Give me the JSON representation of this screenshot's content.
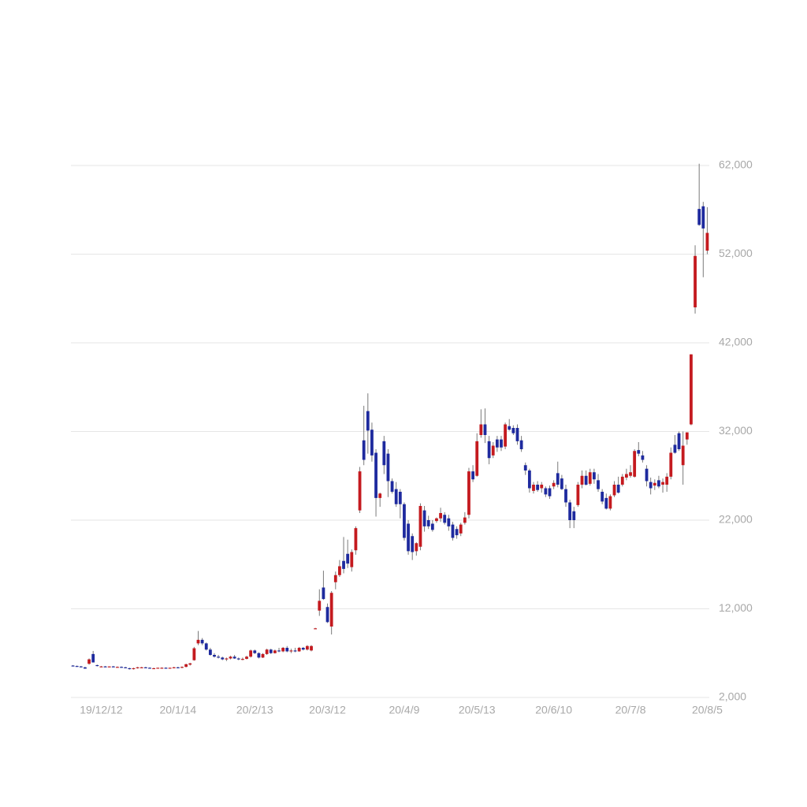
{
  "chart_data": {
    "type": "candlestick",
    "categories": [
      null,
      null,
      null,
      null,
      null,
      null,
      null,
      "19/12/12",
      null,
      null,
      null,
      null,
      null,
      null,
      null,
      null,
      null,
      null,
      null,
      null,
      null,
      null,
      null,
      null,
      null,
      null,
      "20/1/14",
      null,
      null,
      null,
      null,
      null,
      null,
      null,
      null,
      null,
      null,
      null,
      null,
      null,
      null,
      null,
      null,
      null,
      null,
      "20/2/13",
      null,
      null,
      null,
      null,
      null,
      null,
      null,
      null,
      null,
      null,
      null,
      null,
      null,
      null,
      null,
      null,
      null,
      "20/3/12",
      null,
      null,
      null,
      null,
      null,
      null,
      null,
      null,
      null,
      null,
      null,
      null,
      null,
      null,
      null,
      null,
      null,
      null,
      "20/4/9",
      null,
      null,
      null,
      null,
      null,
      null,
      null,
      null,
      null,
      null,
      null,
      null,
      null,
      null,
      null,
      null,
      null,
      "20/5/13",
      null,
      null,
      null,
      null,
      null,
      null,
      null,
      null,
      null,
      null,
      null,
      null,
      null,
      null,
      null,
      null,
      null,
      null,
      "20/6/10",
      null,
      null,
      null,
      null,
      null,
      null,
      null,
      null,
      null,
      null,
      null,
      null,
      null,
      null,
      null,
      null,
      null,
      null,
      "20/7/8",
      null,
      null,
      null,
      null,
      null,
      null,
      null,
      null,
      null,
      null,
      null,
      null,
      null,
      null,
      null,
      null,
      null,
      null,
      "20/8/5"
    ],
    "candles": [
      [
        5600,
        5650,
        5550,
        5550
      ],
      [
        5550,
        5600,
        5500,
        5500
      ],
      [
        5500,
        5550,
        5450,
        5450
      ],
      [
        5400,
        5450,
        5250,
        5250
      ],
      [
        5800,
        6400,
        5700,
        6300
      ],
      [
        6900,
        7250,
        5950,
        5950
      ],
      [
        5650,
        5700,
        5500,
        5550
      ],
      [
        5500,
        5550,
        5450,
        5500
      ],
      [
        5500,
        5550,
        5450,
        5450
      ],
      [
        5450,
        5500,
        5400,
        5500
      ],
      [
        5500,
        5550,
        5450,
        5450
      ],
      [
        5450,
        5500,
        5400,
        5450
      ],
      [
        5450,
        5500,
        5350,
        5400
      ],
      [
        5400,
        5450,
        5300,
        5300
      ],
      [
        5300,
        5350,
        5150,
        5200
      ],
      [
        5200,
        5350,
        5150,
        5300
      ],
      [
        5300,
        5450,
        5250,
        5400
      ],
      [
        5400,
        5450,
        5350,
        5400
      ],
      [
        5400,
        5450,
        5350,
        5350
      ],
      [
        5350,
        5400,
        5250,
        5300
      ],
      [
        5300,
        5350,
        5200,
        5300
      ],
      [
        5300,
        5350,
        5250,
        5350
      ],
      [
        5350,
        5400,
        5300,
        5350
      ],
      [
        5350,
        5400,
        5300,
        5300
      ],
      [
        5300,
        5350,
        5250,
        5350
      ],
      [
        5350,
        5450,
        5300,
        5400
      ],
      [
        5400,
        5450,
        5300,
        5350
      ],
      [
        5350,
        5500,
        5300,
        5450
      ],
      [
        5450,
        5800,
        5400,
        5750
      ],
      [
        5700,
        5900,
        5600,
        5850
      ],
      [
        6200,
        7700,
        6150,
        7550
      ],
      [
        8100,
        9500,
        7900,
        8500
      ],
      [
        8500,
        8700,
        7900,
        8100
      ],
      [
        8100,
        8200,
        7300,
        7400
      ],
      [
        7400,
        7600,
        6700,
        6800
      ],
      [
        6800,
        7000,
        6500,
        6600
      ],
      [
        6600,
        6800,
        6400,
        6500
      ],
      [
        6500,
        6600,
        6200,
        6300
      ],
      [
        6300,
        6500,
        6100,
        6400
      ],
      [
        6400,
        6700,
        6300,
        6600
      ],
      [
        6600,
        6800,
        6350,
        6400
      ],
      [
        6400,
        6500,
        6200,
        6300
      ],
      [
        6300,
        6500,
        6200,
        6350
      ],
      [
        6350,
        6700,
        6300,
        6600
      ],
      [
        6600,
        7400,
        6500,
        7300
      ],
      [
        7300,
        7400,
        6900,
        7000
      ],
      [
        7000,
        7100,
        6400,
        6500
      ],
      [
        6500,
        7000,
        6450,
        6900
      ],
      [
        6900,
        7500,
        6800,
        7400
      ],
      [
        7400,
        7500,
        6900,
        7000
      ],
      [
        7000,
        7400,
        6950,
        7300
      ],
      [
        7300,
        7600,
        7100,
        7200
      ],
      [
        7200,
        7700,
        7100,
        7600
      ],
      [
        7600,
        7800,
        7100,
        7200
      ],
      [
        7200,
        7500,
        7000,
        7300
      ],
      [
        7300,
        7600,
        7100,
        7200
      ],
      [
        7200,
        7700,
        7150,
        7600
      ],
      [
        7600,
        7700,
        7300,
        7400
      ],
      [
        7400,
        7900,
        7300,
        7800
      ],
      [
        7300,
        7900,
        7200,
        7800
      ],
      [
        9800,
        9850,
        9750,
        9800
      ],
      [
        11800,
        14200,
        11200,
        12900
      ],
      [
        14400,
        16300,
        13000,
        13100
      ],
      [
        12200,
        12600,
        10400,
        10500
      ],
      [
        10000,
        14000,
        9100,
        13800
      ],
      [
        15000,
        16200,
        14200,
        15800
      ],
      [
        15800,
        17500,
        15600,
        16800
      ],
      [
        17400,
        20100,
        16000,
        16500
      ],
      [
        18200,
        19800,
        16600,
        17100
      ],
      [
        16700,
        18700,
        16200,
        18400
      ],
      [
        18600,
        21300,
        18100,
        21100
      ],
      [
        23100,
        28000,
        22800,
        27500
      ],
      [
        31000,
        34900,
        28200,
        28800
      ],
      [
        34300,
        36300,
        29500,
        32100
      ],
      [
        32200,
        33000,
        28600,
        29300
      ],
      [
        29600,
        30000,
        22400,
        24500
      ],
      [
        24500,
        25100,
        23500,
        25000
      ],
      [
        30900,
        31500,
        27200,
        28200
      ],
      [
        29500,
        30000,
        24600,
        26400
      ],
      [
        26400,
        26700,
        25000,
        25200
      ],
      [
        25500,
        26300,
        23500,
        23800
      ],
      [
        25200,
        25500,
        22200,
        23800
      ],
      [
        23800,
        24000,
        19700,
        20000
      ],
      [
        21600,
        22000,
        18100,
        18500
      ],
      [
        20200,
        20500,
        17500,
        18400
      ],
      [
        18500,
        19500,
        18000,
        19400
      ],
      [
        19000,
        23900,
        18600,
        23600
      ],
      [
        23100,
        23600,
        20700,
        21300
      ],
      [
        22000,
        22500,
        21000,
        21300
      ],
      [
        21600,
        22000,
        20700,
        20900
      ],
      [
        21900,
        22300,
        21700,
        22200
      ],
      [
        22200,
        23400,
        21800,
        22800
      ],
      [
        22600,
        22900,
        21500,
        21700
      ],
      [
        22200,
        22600,
        20800,
        21300
      ],
      [
        21500,
        21800,
        19700,
        20000
      ],
      [
        21000,
        21300,
        19900,
        20300
      ],
      [
        20500,
        21700,
        20200,
        21500
      ],
      [
        21700,
        22900,
        21500,
        22300
      ],
      [
        22600,
        27900,
        22200,
        27500
      ],
      [
        27500,
        28200,
        26300,
        26600
      ],
      [
        27000,
        31800,
        26900,
        30900
      ],
      [
        31600,
        34500,
        31300,
        32800
      ],
      [
        32800,
        34600,
        30700,
        31600
      ],
      [
        30900,
        31500,
        28300,
        29000
      ],
      [
        29300,
        30800,
        29000,
        30400
      ],
      [
        31100,
        31500,
        29700,
        30200
      ],
      [
        31100,
        31500,
        29800,
        30200
      ],
      [
        30300,
        33000,
        30000,
        32800
      ],
      [
        32600,
        33400,
        32100,
        32200
      ],
      [
        32400,
        32700,
        31600,
        31800
      ],
      [
        32400,
        32800,
        30500,
        30900
      ],
      [
        31000,
        31500,
        29700,
        30000
      ],
      [
        28200,
        28500,
        27100,
        27600
      ],
      [
        27600,
        27800,
        25100,
        25600
      ],
      [
        25300,
        26300,
        25000,
        26000
      ],
      [
        26000,
        26400,
        25200,
        25400
      ],
      [
        25600,
        26300,
        25100,
        26000
      ],
      [
        25600,
        25800,
        24600,
        24900
      ],
      [
        25600,
        25900,
        24400,
        24700
      ],
      [
        25800,
        26500,
        25500,
        26200
      ],
      [
        27300,
        28600,
        25700,
        26000
      ],
      [
        26700,
        27100,
        25400,
        25500
      ],
      [
        25500,
        26000,
        23500,
        24000
      ],
      [
        24000,
        24300,
        21100,
        22000
      ],
      [
        23000,
        23500,
        21100,
        22000
      ],
      [
        23700,
        26300,
        23500,
        26000
      ],
      [
        26000,
        27600,
        25600,
        27000
      ],
      [
        27000,
        27600,
        25900,
        26000
      ],
      [
        26100,
        27800,
        25900,
        27400
      ],
      [
        27400,
        27800,
        26100,
        26600
      ],
      [
        26500,
        27200,
        25200,
        25500
      ],
      [
        25200,
        25500,
        23800,
        24100
      ],
      [
        24500,
        25000,
        23200,
        23300
      ],
      [
        23300,
        24900,
        23100,
        24700
      ],
      [
        24800,
        26400,
        24600,
        26000
      ],
      [
        26000,
        26900,
        25000,
        25100
      ],
      [
        26000,
        27200,
        25800,
        26900
      ],
      [
        26800,
        27800,
        26500,
        27200
      ],
      [
        27000,
        28200,
        26800,
        27400
      ],
      [
        26900,
        30000,
        26800,
        29800
      ],
      [
        29900,
        30800,
        29200,
        29500
      ],
      [
        29300,
        29800,
        28500,
        28800
      ],
      [
        27800,
        28200,
        25800,
        26400
      ],
      [
        26300,
        26800,
        24900,
        25600
      ],
      [
        25900,
        26600,
        25400,
        26200
      ],
      [
        26500,
        27000,
        25600,
        25800
      ],
      [
        26000,
        26700,
        25100,
        26300
      ],
      [
        26000,
        27300,
        25200,
        26900
      ],
      [
        26900,
        30200,
        26600,
        29600
      ],
      [
        30500,
        31600,
        29500,
        29600
      ],
      [
        31800,
        32000,
        29800,
        30000
      ],
      [
        28200,
        32000,
        26000,
        30400
      ],
      [
        31100,
        31900,
        30500,
        31900
      ],
      [
        32800,
        40700,
        32700,
        40700
      ],
      [
        46000,
        53000,
        45300,
        51800
      ],
      [
        57100,
        62200,
        55200,
        55300
      ],
      [
        57400,
        57900,
        49400,
        54900
      ],
      [
        52400,
        57300,
        52000,
        54400
      ]
    ],
    "up_color": "#c41a1f",
    "down_color": "#1e2a9e",
    "wick_color": "#7a7a7a",
    "ylim": [
      2000,
      62000
    ],
    "yticks": [
      {
        "value": 2000,
        "label": "2,000"
      },
      {
        "value": 12000,
        "label": "12,000"
      },
      {
        "value": 22000,
        "label": "22,000"
      },
      {
        "value": 32000,
        "label": "32,000"
      },
      {
        "value": 42000,
        "label": "42,000"
      },
      {
        "value": 52000,
        "label": "52,000"
      },
      {
        "value": 62000,
        "label": "62,000"
      }
    ],
    "grid": true
  }
}
